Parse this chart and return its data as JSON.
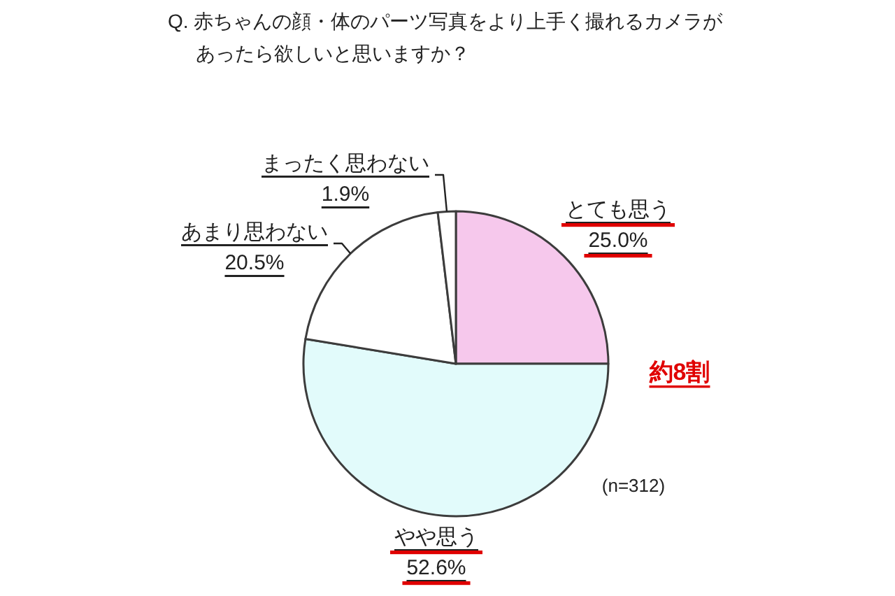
{
  "chart_data": {
    "type": "pie",
    "title": "Q. 赤ちゃんの顔・体のパーツ写真をより上手く撮れるカメラがあったら欲しいと思いますか？",
    "categories": [
      "とても思う",
      "やや思う",
      "あまり思わない",
      "まったく思わない"
    ],
    "values": [
      25.0,
      52.6,
      20.5,
      1.9
    ],
    "value_labels": [
      "25.0%",
      "52.6%",
      "20.5%",
      "1.9%"
    ],
    "colors": [
      "#f6c8ec",
      "#e2fbfb",
      "#ffffff",
      "#ffffff"
    ],
    "annotations": [
      "約8割",
      "(n=312)"
    ]
  }
}
